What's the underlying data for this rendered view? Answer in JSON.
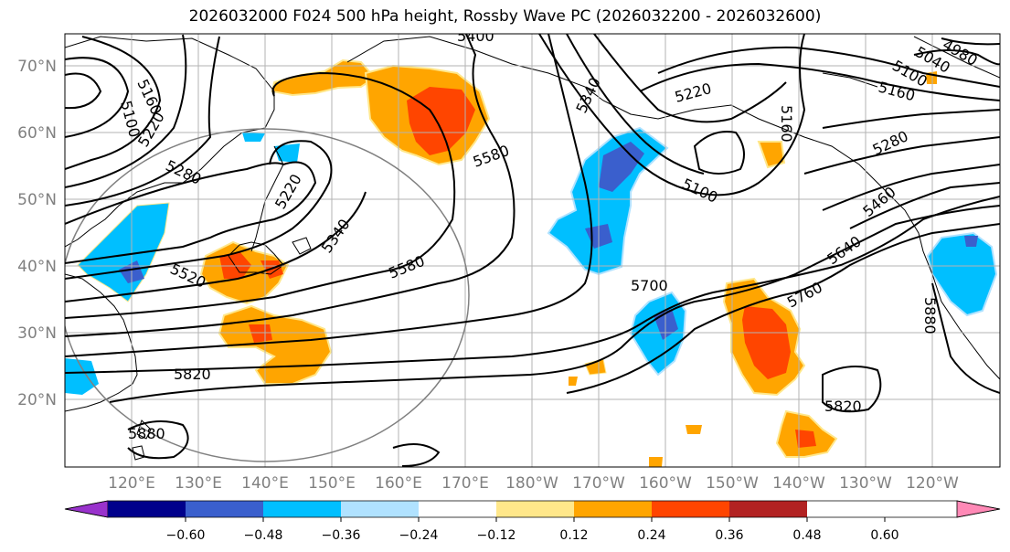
{
  "title": "2026032000 F024 500 hPa height, Rossby Wave PC (2026032200 - 2026032600)",
  "lat_labels": [
    "70°N",
    "60°N",
    "50°N",
    "40°N",
    "30°N",
    "20°N"
  ],
  "lon_labels": [
    "120°E",
    "130°E",
    "140°E",
    "150°E",
    "160°E",
    "170°E",
    "180°W",
    "170°W",
    "160°W",
    "150°W",
    "140°W",
    "130°W",
    "120°W"
  ],
  "contour_labels": [
    "5400",
    "5100",
    "5160",
    "5220",
    "5280",
    "5220",
    "5340",
    "5520",
    "5580",
    "5820",
    "5880",
    "5340",
    "5220",
    "5580",
    "5160",
    "5100",
    "5700",
    "5760",
    "5640",
    "5460",
    "5280",
    "5160",
    "5100",
    "5040",
    "4980",
    "5820",
    "5880"
  ],
  "colorbar": {
    "ticks": [
      "−0.60",
      "−0.48",
      "−0.36",
      "−0.24",
      "−0.12",
      "0.12",
      "0.24",
      "0.36",
      "0.48",
      "0.60"
    ],
    "colors": [
      "#9932CC",
      "#00008B",
      "#3A5FCD",
      "#00BFFF",
      "#B0E2FF",
      "#FFFFFF",
      "#FFE78A",
      "#FFA500",
      "#FF4500",
      "#B22222",
      "#FF89B6"
    ]
  }
}
